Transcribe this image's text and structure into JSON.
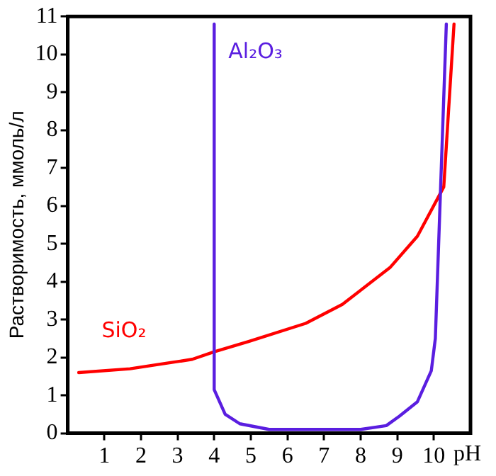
{
  "chart_data": {
    "type": "line",
    "xlabel": "pH",
    "ylabel": "Растворимость, ммоль/л",
    "xlim": [
      0,
      11
    ],
    "xticks": [
      1,
      2,
      3,
      4,
      5,
      6,
      7,
      8,
      9,
      10
    ],
    "ylim": [
      0,
      11
    ],
    "yticks": [
      0,
      1,
      2,
      3,
      4,
      5,
      6,
      7,
      8,
      9,
      10,
      11
    ],
    "grid": false,
    "legend": false,
    "marker": "none",
    "line_style": "solid",
    "series": [
      {
        "name": "Al₂O₃",
        "color": "#5a1ee0",
        "x": [
          4,
          4,
          4.3,
          4.7,
          5.5,
          8,
          8.7,
          9.06,
          9.55,
          9.93,
          10.04,
          10.34
        ],
        "values": [
          10.8,
          1.15,
          0.5,
          0.25,
          0.1,
          0.1,
          0.2,
          0.45,
          0.83,
          1.65,
          2.5,
          10.8
        ]
      },
      {
        "name": "SiO₂",
        "color": "#ff0000",
        "x": [
          0.3,
          1.7,
          3.4,
          4,
          4.94,
          6.5,
          7.5,
          8.8,
          9.55,
          10.27,
          10.55
        ],
        "values": [
          1.6,
          1.7,
          1.95,
          2.15,
          2.42,
          2.9,
          3.4,
          4.37,
          5.2,
          6.5,
          10.8
        ]
      }
    ]
  }
}
